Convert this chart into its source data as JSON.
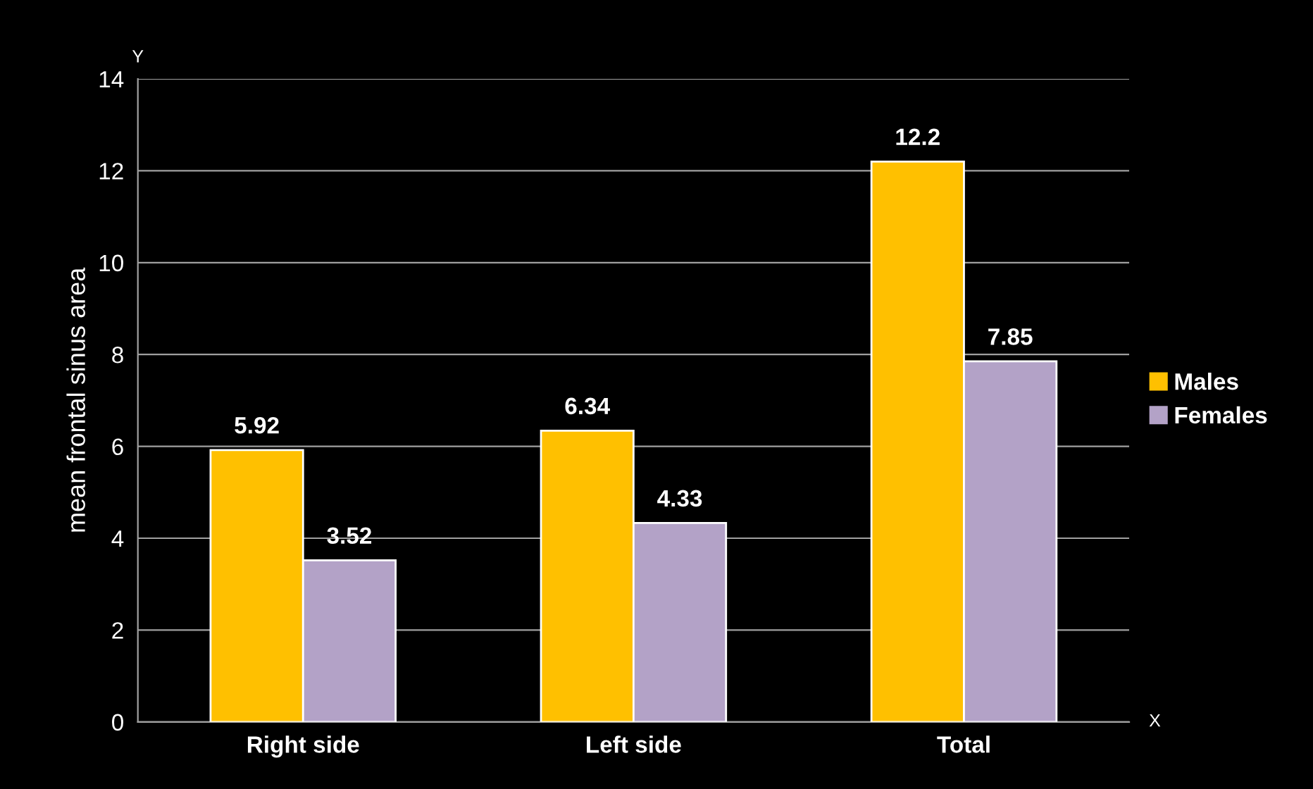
{
  "chart_data": {
    "type": "bar",
    "ylabel": "mean frontal sinus area",
    "categories": [
      "Right side",
      "Left side",
      "Total"
    ],
    "series": [
      {
        "name": "Males",
        "color": "#ffc000",
        "values": [
          5.92,
          6.34,
          12.2
        ]
      },
      {
        "name": "Females",
        "color": "#b3a2c7",
        "values": [
          3.52,
          4.33,
          7.85
        ]
      }
    ],
    "ylim": [
      0,
      14
    ],
    "yticks": [
      0,
      2,
      4,
      6,
      8,
      10,
      12,
      14
    ],
    "grid": "y",
    "legend": "right",
    "data_labels": true,
    "annotations": [
      "Y",
      "X"
    ]
  }
}
